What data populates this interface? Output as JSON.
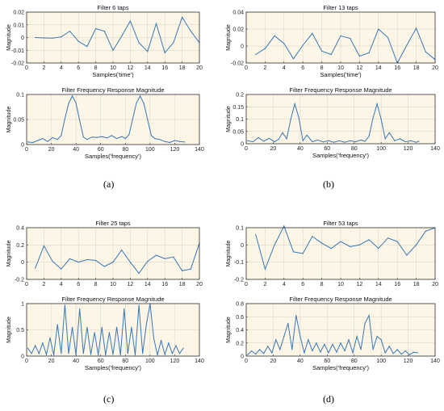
{
  "panel_labels": [
    "(a)",
    "(b)",
    "(c)",
    "(d)"
  ],
  "line_color": "#3478b8",
  "plot_background": "#fdf5e6",
  "chart_data": [
    {
      "type": "line",
      "title": "Filter 6 taps",
      "xlabel": "Samples('time')",
      "ylabel": "Magnitude",
      "xlim": [
        0,
        20
      ],
      "ylim": [
        -0.02,
        0.02
      ],
      "xticks": [
        0,
        2,
        4,
        6,
        8,
        10,
        12,
        14,
        16,
        18,
        20
      ],
      "yticks": [
        -0.02,
        -0.01,
        0,
        0.01,
        0.02
      ],
      "ytick_labels": [
        "-0.02",
        "-0.01",
        "0",
        "0.01",
        "0.02"
      ],
      "x": [
        1,
        2,
        3,
        4,
        5,
        6,
        7,
        8,
        9,
        10,
        11,
        12,
        13,
        14,
        15,
        16,
        17,
        18,
        19,
        20
      ],
      "values": [
        0,
        -0.0003,
        -0.0005,
        0.0005,
        0.005,
        -0.003,
        -0.007,
        0.007,
        0.005,
        -0.01,
        0.001,
        0.013,
        -0.004,
        -0.011,
        0.011,
        -0.012,
        -0.004,
        0.016,
        0.005,
        -0.004
      ]
    },
    {
      "type": "line",
      "title": "Filter Frequency Response Magnitude",
      "xlabel": "Samples('frequency')",
      "ylabel": "Magnitude",
      "xlim": [
        0,
        140
      ],
      "ylim": [
        0,
        0.1
      ],
      "xticks": [
        0,
        20,
        40,
        60,
        80,
        100,
        120,
        140
      ],
      "yticks": [
        0,
        0.05,
        0.1
      ],
      "ytick_labels": [
        "0",
        "0.05",
        "0.1"
      ],
      "x": [
        1,
        5,
        9,
        13,
        17,
        21,
        25,
        28,
        31,
        34,
        37,
        40,
        43,
        46,
        49,
        53,
        57,
        61,
        65,
        69,
        73,
        77,
        80,
        83,
        86,
        89,
        92,
        95,
        98,
        101,
        104,
        108,
        112,
        116,
        120,
        124,
        128
      ],
      "values": [
        0.005,
        0.004,
        0.008,
        0.012,
        0.006,
        0.014,
        0.01,
        0.018,
        0.052,
        0.082,
        0.097,
        0.083,
        0.048,
        0.015,
        0.01,
        0.015,
        0.014,
        0.016,
        0.013,
        0.018,
        0.012,
        0.016,
        0.012,
        0.02,
        0.052,
        0.083,
        0.097,
        0.082,
        0.05,
        0.018,
        0.012,
        0.01,
        0.006,
        0.004,
        0.008,
        0.006,
        0.005
      ]
    },
    {
      "type": "line",
      "title": "Filter 13 taps",
      "xlabel": "Samples('time')",
      "ylabel": "Magnitude",
      "xlim": [
        0,
        20
      ],
      "ylim": [
        -0.02,
        0.04
      ],
      "xticks": [
        0,
        2,
        4,
        6,
        8,
        10,
        12,
        14,
        16,
        18,
        20
      ],
      "yticks": [
        -0.02,
        0,
        0.02,
        0.04
      ],
      "ytick_labels": [
        "-0.02",
        "0",
        "0.02",
        "0.04"
      ],
      "x": [
        1,
        2,
        3,
        4,
        5,
        6,
        7,
        8,
        9,
        10,
        11,
        12,
        13,
        14,
        15,
        16,
        17,
        18,
        19,
        20
      ],
      "values": [
        -0.01,
        -0.003,
        0.012,
        0.003,
        -0.015,
        0.001,
        0.015,
        -0.006,
        -0.01,
        0.012,
        0.009,
        -0.012,
        -0.008,
        0.02,
        0.01,
        -0.02,
        0.001,
        0.021,
        -0.007,
        -0.016
      ]
    },
    {
      "type": "line",
      "title": "Filter Frequency Response Magnitude",
      "xlabel": "Samples('frequency')",
      "ylabel": "Magnitude",
      "xlim": [
        0,
        140
      ],
      "ylim": [
        0,
        0.2
      ],
      "xticks": [
        0,
        20,
        40,
        60,
        80,
        100,
        120,
        140
      ],
      "yticks": [
        0,
        0.05,
        0.1,
        0.15,
        0.2
      ],
      "ytick_labels": [
        "0",
        "0.05",
        "0.1",
        "0.15",
        "0.2"
      ],
      "x": [
        1,
        5,
        9,
        13,
        17,
        21,
        24,
        27,
        30,
        33,
        36,
        39,
        42,
        45,
        49,
        53,
        57,
        61,
        65,
        69,
        73,
        77,
        81,
        85,
        88,
        91,
        94,
        97,
        100,
        103,
        106,
        110,
        114,
        118,
        122,
        126,
        128
      ],
      "values": [
        0.012,
        0.008,
        0.025,
        0.01,
        0.022,
        0.008,
        0.018,
        0.045,
        0.02,
        0.1,
        0.162,
        0.105,
        0.012,
        0.035,
        0.008,
        0.015,
        0.007,
        0.012,
        0.006,
        0.012,
        0.006,
        0.012,
        0.008,
        0.015,
        0.01,
        0.03,
        0.105,
        0.162,
        0.1,
        0.02,
        0.045,
        0.012,
        0.02,
        0.008,
        0.012,
        0.006,
        0.01
      ]
    },
    {
      "type": "line",
      "title": "Filter 25 taps",
      "xlabel": "",
      "ylabel": "Magnitude",
      "xlim": [
        0,
        20
      ],
      "ylim": [
        -0.2,
        0.4
      ],
      "xticks": [
        0,
        2,
        4,
        6,
        8,
        10,
        12,
        14,
        16,
        18,
        20
      ],
      "yticks": [
        -0.2,
        0,
        0.2,
        0.4
      ],
      "ytick_labels": [
        "-0.2",
        "0",
        "0.2",
        "0.4"
      ],
      "x": [
        1,
        2,
        3,
        4,
        5,
        6,
        7,
        8,
        9,
        10,
        11,
        12,
        13,
        14,
        15,
        16,
        17,
        18,
        19,
        20
      ],
      "values": [
        -0.07,
        0.19,
        0.01,
        -0.08,
        0.04,
        0.0,
        0.03,
        0.02,
        -0.05,
        0.0,
        0.14,
        0.0,
        -0.13,
        0.01,
        0.08,
        0.04,
        0.06,
        -0.1,
        -0.08,
        0.22
      ]
    },
    {
      "type": "line",
      "title": "Filter Frequency Response Magnitude",
      "xlabel": "Samples('frequency')",
      "ylabel": "Magnitude",
      "xlim": [
        0,
        140
      ],
      "ylim": [
        0,
        1
      ],
      "xticks": [
        0,
        20,
        40,
        60,
        80,
        100,
        120,
        140
      ],
      "yticks": [
        0,
        0.5,
        1
      ],
      "ytick_labels": [
        "0",
        "0.5",
        "1"
      ],
      "x": [
        1,
        4,
        7,
        10,
        13,
        16,
        19,
        22,
        25,
        28,
        31,
        34,
        37,
        40,
        43,
        46,
        49,
        52,
        55,
        58,
        61,
        64,
        67,
        70,
        73,
        76,
        79,
        82,
        85,
        88,
        91,
        94,
        97,
        100,
        103,
        106,
        109,
        112,
        115,
        118,
        121,
        124,
        127
      ],
      "values": [
        0.15,
        0.05,
        0.2,
        0.05,
        0.25,
        0.03,
        0.35,
        0.02,
        0.6,
        0.05,
        0.97,
        0.05,
        0.55,
        0.02,
        0.9,
        0.05,
        0.55,
        0.03,
        0.45,
        0.02,
        0.55,
        0.02,
        0.45,
        0.03,
        0.55,
        0.02,
        0.9,
        0.05,
        0.55,
        0.02,
        0.97,
        0.05,
        0.6,
        1.0,
        0.35,
        0.02,
        0.3,
        0.03,
        0.25,
        0.05,
        0.2,
        0.05,
        0.15
      ]
    },
    {
      "type": "line",
      "title": "Filter 53 taps",
      "xlabel": "",
      "ylabel": "Magnitude",
      "xlim": [
        0,
        20
      ],
      "ylim": [
        -0.2,
        0.1
      ],
      "xticks": [
        0,
        2,
        4,
        6,
        8,
        10,
        12,
        14,
        16,
        18,
        20
      ],
      "yticks": [
        -0.2,
        -0.1,
        0,
        0.1
      ],
      "ytick_labels": [
        "-0.2",
        "-0.1",
        "0",
        "0.1"
      ],
      "x": [
        1,
        2,
        3,
        4,
        5,
        6,
        7,
        8,
        9,
        10,
        11,
        12,
        13,
        14,
        15,
        16,
        17,
        18,
        19,
        20
      ],
      "values": [
        0.06,
        -0.14,
        0.0,
        0.11,
        -0.04,
        -0.05,
        0.05,
        0.01,
        -0.02,
        0.02,
        -0.01,
        0.0,
        0.03,
        -0.02,
        0.04,
        0.02,
        -0.06,
        0.0,
        0.08,
        0.1
      ]
    },
    {
      "type": "line",
      "title": "Filter Frequency Response Magnitude",
      "xlabel": "Samples('frequency')",
      "ylabel": "Magnitude",
      "xlim": [
        0,
        140
      ],
      "ylim": [
        0,
        0.8
      ],
      "xticks": [
        0,
        20,
        40,
        60,
        80,
        100,
        120,
        140
      ],
      "yticks": [
        0,
        0.2,
        0.4,
        0.6,
        0.8
      ],
      "ytick_labels": [
        "0",
        "0.2",
        "0.4",
        "0.6",
        "0.8"
      ],
      "x": [
        1,
        4,
        7,
        10,
        13,
        16,
        19,
        22,
        25,
        28,
        31,
        34,
        37,
        40,
        43,
        46,
        49,
        52,
        55,
        58,
        61,
        64,
        67,
        70,
        73,
        76,
        79,
        82,
        85,
        88,
        91,
        94,
        97,
        100,
        103,
        106,
        109,
        112,
        115,
        118,
        121,
        124,
        127
      ],
      "values": [
        0.02,
        0.08,
        0.03,
        0.1,
        0.04,
        0.15,
        0.05,
        0.25,
        0.1,
        0.3,
        0.5,
        0.1,
        0.62,
        0.3,
        0.05,
        0.25,
        0.08,
        0.2,
        0.06,
        0.18,
        0.05,
        0.18,
        0.06,
        0.2,
        0.08,
        0.25,
        0.05,
        0.3,
        0.1,
        0.5,
        0.62,
        0.1,
        0.3,
        0.25,
        0.05,
        0.15,
        0.04,
        0.1,
        0.03,
        0.08,
        0.02,
        0.06,
        0.05
      ]
    }
  ]
}
